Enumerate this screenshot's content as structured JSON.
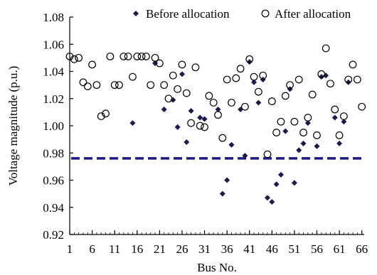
{
  "chart_data": {
    "type": "scatter",
    "xlabel": "Bus No.",
    "ylabel": "Voltage magnitude (p.u.)",
    "x_ticks": [
      1,
      6,
      11,
      16,
      21,
      26,
      31,
      36,
      41,
      46,
      51,
      56,
      61,
      66
    ],
    "y_ticks": [
      "0.92",
      "0.94",
      "0.96",
      "0.98",
      "1.00",
      "1.02",
      "1.04",
      "1.06",
      "1.08"
    ],
    "xlim": [
      1,
      67
    ],
    "ylim": [
      0.92,
      1.08
    ],
    "grid": false,
    "legend_position": "top-right",
    "reference_line": {
      "y": 0.976,
      "style": "dashed",
      "color": "#1a1a8c"
    },
    "series": [
      {
        "name": "Before allocation",
        "marker": "filled-diamond",
        "color": "#1a1a4d",
        "points": [
          [
            15,
            1.002
          ],
          [
            20,
            1.046
          ],
          [
            22,
            1.012
          ],
          [
            24,
            1.019
          ],
          [
            25,
            0.999
          ],
          [
            26,
            1.038
          ],
          [
            27,
            0.988
          ],
          [
            28,
            1.011
          ],
          [
            30,
            1.006
          ],
          [
            31,
            1.005
          ],
          [
            34,
            1.012
          ],
          [
            35,
            0.95
          ],
          [
            36,
            0.96
          ],
          [
            37,
            0.986
          ],
          [
            39,
            1.012
          ],
          [
            40,
            0.978
          ],
          [
            41,
            1.047
          ],
          [
            42,
            1.032
          ],
          [
            43,
            1.017
          ],
          [
            44,
            1.034
          ],
          [
            45,
            0.947
          ],
          [
            46,
            0.944
          ],
          [
            47,
            0.957
          ],
          [
            48,
            0.964
          ],
          [
            49,
            0.996
          ],
          [
            50,
            1.027
          ],
          [
            51,
            0.958
          ],
          [
            52,
            0.982
          ],
          [
            53,
            0.987
          ],
          [
            54,
            1.002
          ],
          [
            56,
            0.985
          ],
          [
            57,
            1.036
          ],
          [
            58,
            1.037
          ],
          [
            60,
            1.006
          ],
          [
            61,
            0.987
          ],
          [
            62,
            1.003
          ],
          [
            63,
            1.032
          ]
        ]
      },
      {
        "name": "After allocation",
        "marker": "open-circle",
        "color": "#000000",
        "points": [
          [
            1,
            1.051
          ],
          [
            2,
            1.049
          ],
          [
            3,
            1.05
          ],
          [
            4,
            1.032
          ],
          [
            5,
            1.029
          ],
          [
            6,
            1.045
          ],
          [
            7,
            1.03
          ],
          [
            8,
            1.007
          ],
          [
            9,
            1.009
          ],
          [
            10,
            1.051
          ],
          [
            11,
            1.03
          ],
          [
            12,
            1.03
          ],
          [
            13,
            1.051
          ],
          [
            14,
            1.051
          ],
          [
            15,
            1.036
          ],
          [
            16,
            1.051
          ],
          [
            17,
            1.051
          ],
          [
            18,
            1.051
          ],
          [
            19,
            1.03
          ],
          [
            20,
            1.05
          ],
          [
            21,
            1.046
          ],
          [
            22,
            1.03
          ],
          [
            23,
            1.02
          ],
          [
            24,
            1.037
          ],
          [
            25,
            1.027
          ],
          [
            26,
            1.045
          ],
          [
            27,
            1.024
          ],
          [
            28,
            1.002
          ],
          [
            29,
            1.043
          ],
          [
            30,
            1.0
          ],
          [
            31,
            0.999
          ],
          [
            32,
            1.022
          ],
          [
            33,
            1.017
          ],
          [
            34,
            1.008
          ],
          [
            35,
            0.991
          ],
          [
            36,
            1.034
          ],
          [
            37,
            1.017
          ],
          [
            38,
            1.035
          ],
          [
            39,
            1.042
          ],
          [
            40,
            1.014
          ],
          [
            41,
            1.049
          ],
          [
            42,
            1.036
          ],
          [
            43,
            1.025
          ],
          [
            44,
            1.037
          ],
          [
            45,
            0.979
          ],
          [
            46,
            1.018
          ],
          [
            47,
            0.995
          ],
          [
            48,
            1.003
          ],
          [
            49,
            1.022
          ],
          [
            50,
            1.03
          ],
          [
            51,
            1.003
          ],
          [
            52,
            1.034
          ],
          [
            53,
            0.995
          ],
          [
            54,
            1.006
          ],
          [
            55,
            1.023
          ],
          [
            56,
            0.993
          ],
          [
            57,
            1.038
          ],
          [
            58,
            1.057
          ],
          [
            59,
            1.031
          ],
          [
            60,
            1.012
          ],
          [
            61,
            0.993
          ],
          [
            62,
            1.007
          ],
          [
            63,
            1.034
          ],
          [
            64,
            1.045
          ],
          [
            65,
            1.034
          ],
          [
            66,
            1.014
          ]
        ]
      }
    ]
  }
}
